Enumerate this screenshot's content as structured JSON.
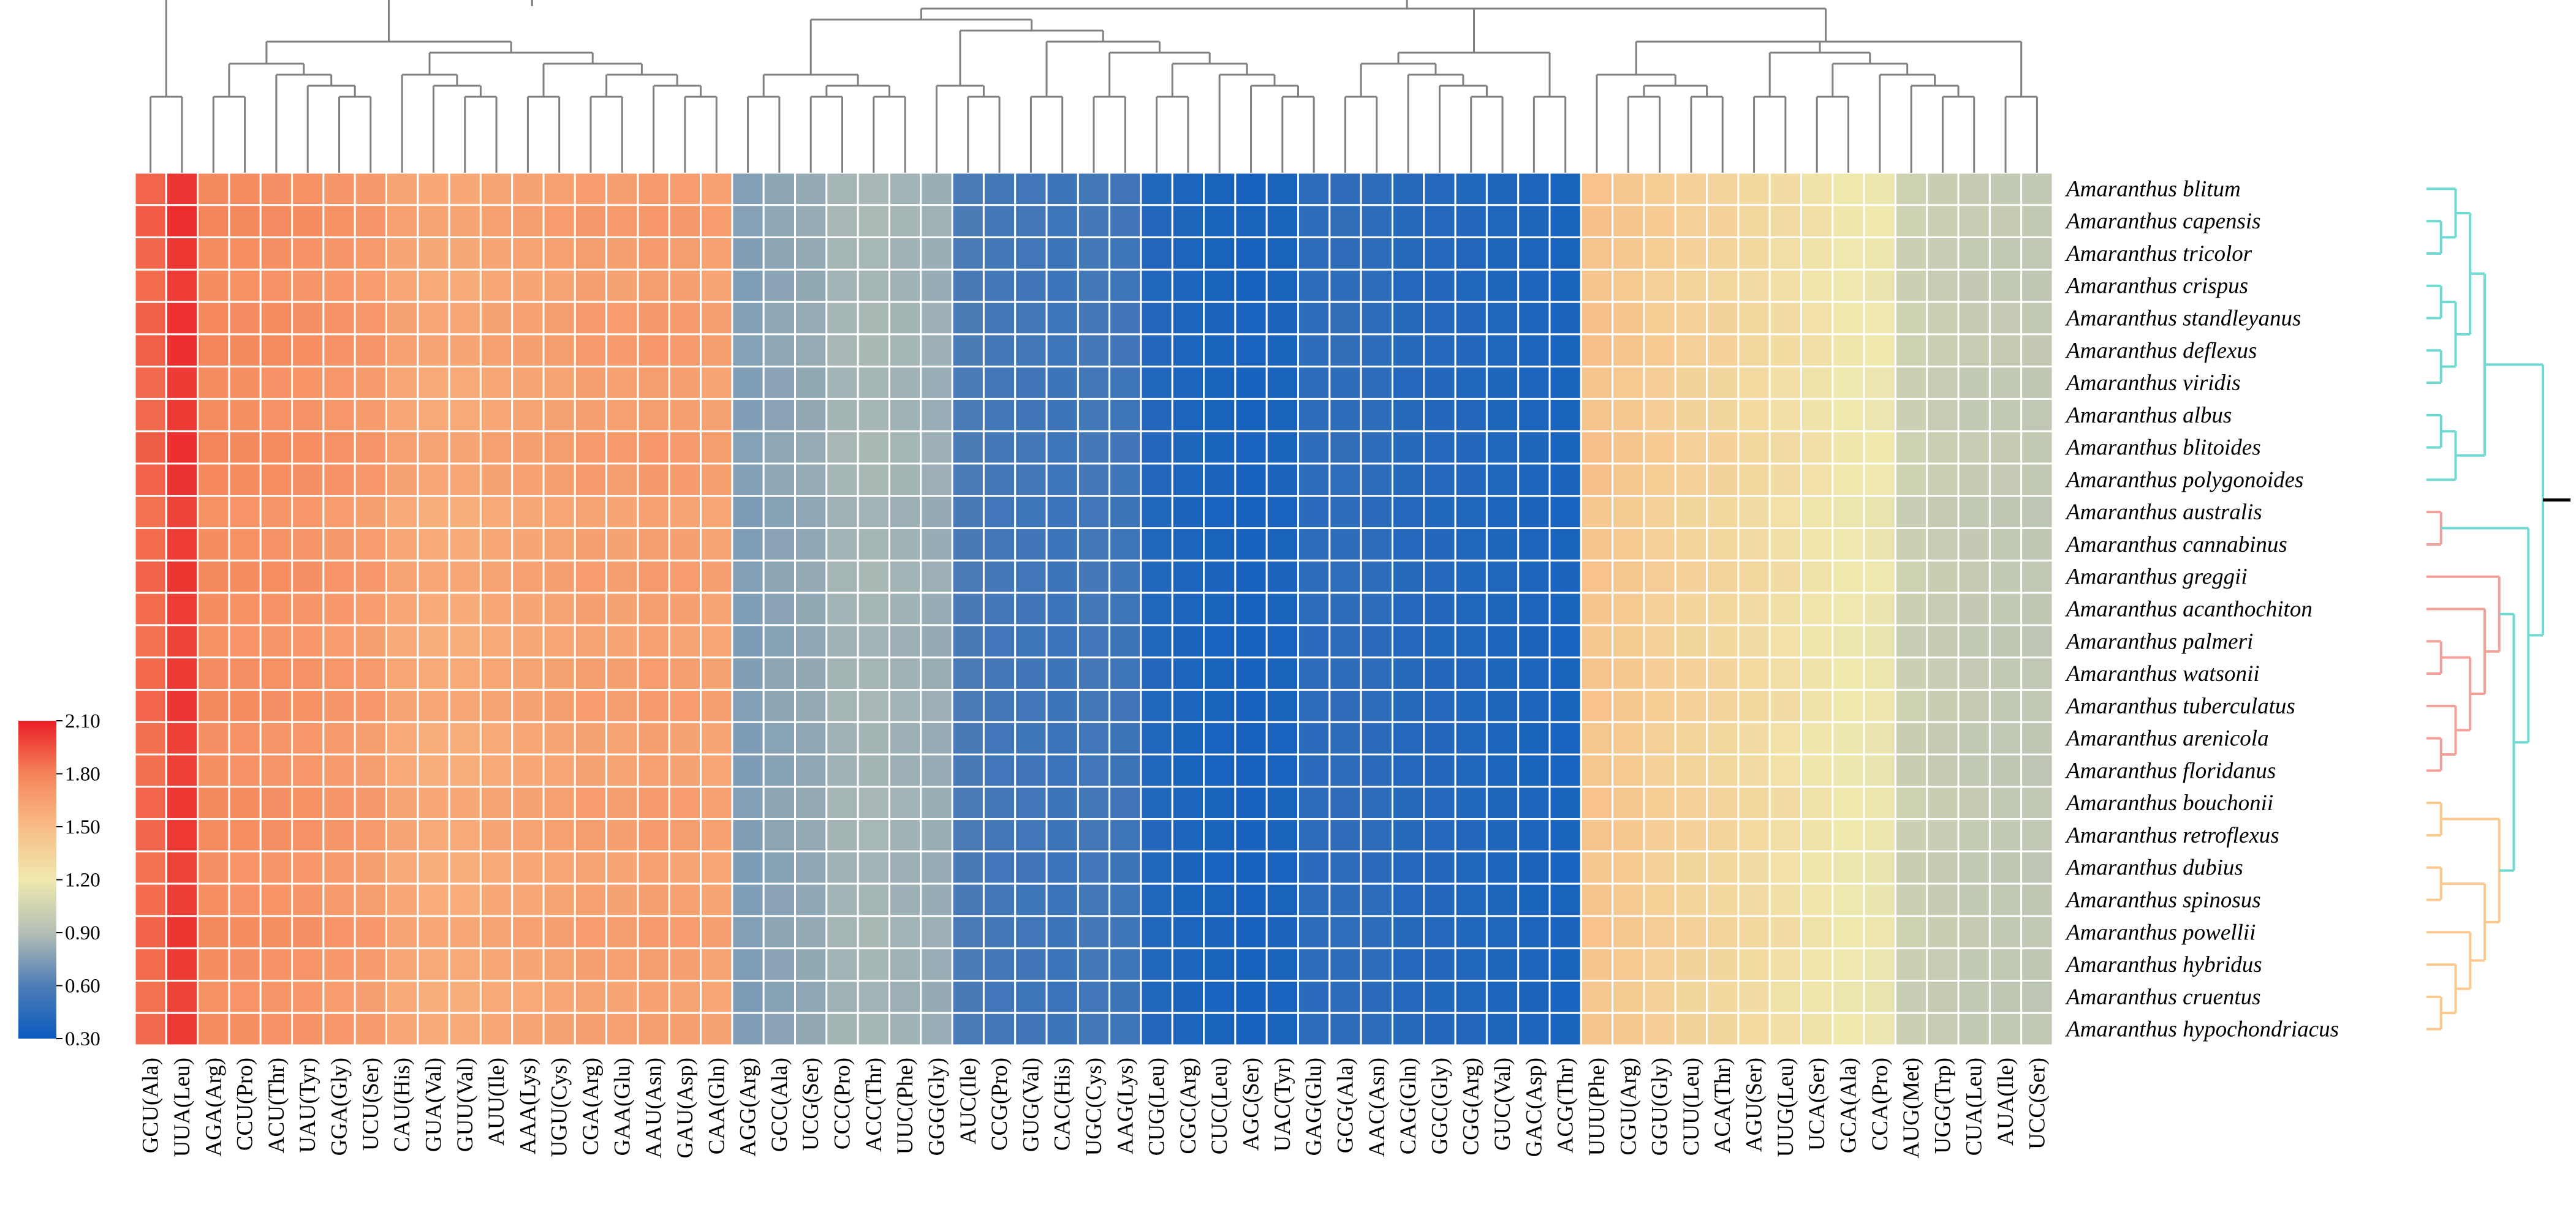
{
  "chart_data": {
    "type": "heatmap",
    "title": "",
    "columns": [
      "GCU(Ala)",
      "UUA(Leu)",
      "AGA(Arg)",
      "CCU(Pro)",
      "ACU(Thr)",
      "UAU(Tyr)",
      "GGA(Gly)",
      "UCU(Ser)",
      "CAU(His)",
      "GUA(Val)",
      "GUU(Val)",
      "AUU(Ile)",
      "AAA(Lys)",
      "UGU(Cys)",
      "CGA(Arg)",
      "GAA(Glu)",
      "AAU(Asn)",
      "GAU(Asp)",
      "CAA(Gln)",
      "AGG(Arg)",
      "GCC(Ala)",
      "UCG(Ser)",
      "CCC(Pro)",
      "ACC(Thr)",
      "UUC(Phe)",
      "GGG(Gly)",
      "AUC(Ile)",
      "CCG(Pro)",
      "GUG(Val)",
      "CAC(His)",
      "UGC(Cys)",
      "AAG(Lys)",
      "CUG(Leu)",
      "CGC(Arg)",
      "CUC(Leu)",
      "AGC(Ser)",
      "UAC(Tyr)",
      "GAG(Glu)",
      "GCG(Ala)",
      "AAC(Asn)",
      "CAG(Gln)",
      "GGC(Gly)",
      "CGG(Arg)",
      "GUC(Val)",
      "GAC(Asp)",
      "ACG(Thr)",
      "UUU(Phe)",
      "CGU(Arg)",
      "GGU(Gly)",
      "CUU(Leu)",
      "ACA(Thr)",
      "AGU(Ser)",
      "UUG(Leu)",
      "UCA(Ser)",
      "GCA(Ala)",
      "CCA(Pro)",
      "AUG(Met)",
      "UGG(Trp)",
      "CUA(Leu)",
      "AUA(Ile)",
      "UCC(Ser)"
    ],
    "rows": [
      "Amaranthus blitum",
      "Amaranthus capensis",
      "Amaranthus tricolor",
      "Amaranthus crispus",
      "Amaranthus standleyanus",
      "Amaranthus deflexus",
      "Amaranthus viridis",
      "Amaranthus albus",
      "Amaranthus blitoides",
      "Amaranthus polygonoides",
      "Amaranthus australis",
      "Amaranthus cannabinus",
      "Amaranthus greggii",
      "Amaranthus acanthochiton",
      "Amaranthus palmeri",
      "Amaranthus watsonii",
      "Amaranthus tuberculatus",
      "Amaranthus arenicola",
      "Amaranthus floridanus",
      "Amaranthus bouchonii",
      "Amaranthus retroflexus",
      "Amaranthus dubius",
      "Amaranthus spinosus",
      "Amaranthus powellii",
      "Amaranthus hybridus",
      "Amaranthus cruentus",
      "Amaranthus hypochondriacus"
    ],
    "column_values": [
      1.88,
      2.02,
      1.76,
      1.74,
      1.73,
      1.72,
      1.7,
      1.68,
      1.62,
      1.6,
      1.6,
      1.62,
      1.63,
      1.64,
      1.66,
      1.65,
      1.67,
      1.66,
      1.64,
      0.75,
      0.78,
      0.8,
      0.85,
      0.86,
      0.84,
      0.82,
      0.58,
      0.55,
      0.54,
      0.52,
      0.55,
      0.53,
      0.4,
      0.38,
      0.37,
      0.36,
      0.37,
      0.45,
      0.46,
      0.45,
      0.42,
      0.41,
      0.4,
      0.39,
      0.38,
      0.37,
      1.45,
      1.42,
      1.38,
      1.35,
      1.33,
      1.3,
      1.27,
      1.24,
      1.2,
      1.18,
      1.02,
      1.0,
      0.98,
      0.97,
      0.96
    ],
    "colorbar": {
      "min": 0.3,
      "max": 2.1,
      "ticks": [
        "2.10",
        "1.80",
        "1.50",
        "1.20",
        "0.90",
        "0.60",
        "0.30"
      ],
      "stops": [
        {
          "v": 0.3,
          "color": "#0a5bbf"
        },
        {
          "v": 0.6,
          "color": "#4e7db6"
        },
        {
          "v": 0.9,
          "color": "#b4bfb5"
        },
        {
          "v": 1.2,
          "color": "#efe9ae"
        },
        {
          "v": 1.5,
          "color": "#f8bc86"
        },
        {
          "v": 1.8,
          "color": "#f5845a"
        },
        {
          "v": 2.1,
          "color": "#ea1e26"
        }
      ]
    },
    "row_clusters": [
      {
        "rows": [
          0,
          9
        ],
        "color": "#6fd9d2"
      },
      {
        "rows": [
          10,
          18
        ],
        "color": "#f4a09a"
      },
      {
        "rows": [
          19,
          26
        ],
        "color": "#fbc98e"
      }
    ],
    "col_dendrogram_color": "#808080"
  }
}
